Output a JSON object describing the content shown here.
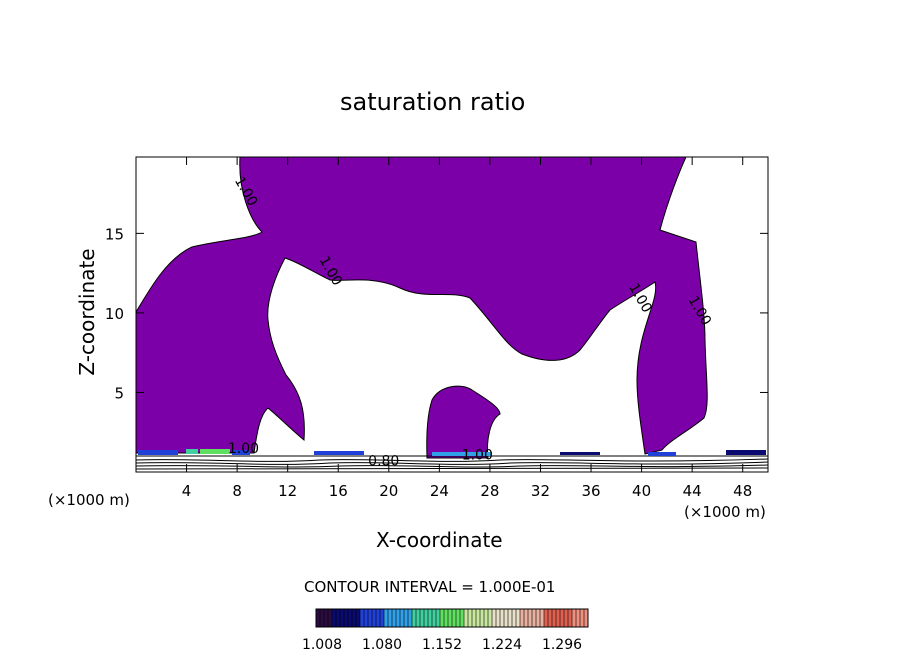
{
  "chart_data": {
    "type": "contour",
    "title": "saturation ratio",
    "xlabel": "X-coordinate",
    "ylabel": "Z-coordinate",
    "x_unit_left": "(×1000 m)",
    "x_unit_right": "(×1000 m)",
    "xlim": [
      0,
      50
    ],
    "ylim": [
      0,
      19.8
    ],
    "xticks": [
      4,
      8,
      12,
      16,
      20,
      24,
      28,
      32,
      36,
      40,
      44,
      48
    ],
    "yticks": [
      5,
      10,
      15
    ],
    "contour_interval_text": "CONTOUR INTERVAL = 1.000E-01",
    "contour_labels": [
      {
        "text": "1.00",
        "x": 8.4,
        "y": 17.5
      },
      {
        "text": "1.00",
        "x": 15.1,
        "y": 12.5
      },
      {
        "text": "1.00",
        "x": 39.6,
        "y": 10.8
      },
      {
        "text": "1.00",
        "x": 44.3,
        "y": 10.0
      },
      {
        "text": "1.00",
        "x": 8.5,
        "y": 1.2
      },
      {
        "text": "0.80",
        "x": 19.6,
        "y": 0.4
      },
      {
        "text": "1.00",
        "x": 27.0,
        "y": 0.8
      }
    ],
    "filled_region": {
      "level_min": 1.0,
      "color": "#7c00a8"
    },
    "colorbar": {
      "tick_labels": [
        "1.008",
        "1.080",
        "1.152",
        "1.224",
        "1.296"
      ],
      "colors": [
        "#2a0c40",
        "#0a0a70",
        "#2040d8",
        "#30a0e8",
        "#40d0a0",
        "#60e060",
        "#c8e8a0",
        "#e8e0c8",
        "#e8b0a0",
        "#e06050",
        "#f09080"
      ]
    }
  }
}
